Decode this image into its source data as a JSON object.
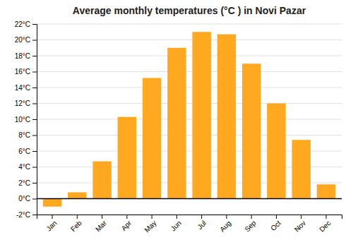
{
  "chart_data": {
    "type": "bar",
    "title": "Average monthly temperatures (°C ) in Novi Pazar",
    "categories": [
      "Jan",
      "Feb",
      "Mar",
      "Apr",
      "May",
      "Jun",
      "Jul",
      "Aug",
      "Sep",
      "Oct",
      "Nov",
      "Dec"
    ],
    "values": [
      -1.0,
      0.8,
      4.7,
      10.3,
      15.2,
      19.0,
      21.0,
      20.7,
      17.0,
      12.0,
      7.4,
      1.8
    ],
    "color": "#FFA820",
    "ylim": [
      -2,
      22
    ],
    "yticks": [
      {
        "value": -2,
        "label": "-2°C"
      },
      {
        "value": 0,
        "label": "0°C"
      },
      {
        "value": 2,
        "label": "2°C"
      },
      {
        "value": 4,
        "label": "4°C"
      },
      {
        "value": 6,
        "label": "6°C"
      },
      {
        "value": 8,
        "label": "8°C"
      },
      {
        "value": 10,
        "label": "10°C"
      },
      {
        "value": 12,
        "label": "12°C"
      },
      {
        "value": 14,
        "label": "14°C"
      },
      {
        "value": 16,
        "label": "16°C"
      },
      {
        "value": 18,
        "label": "18°C"
      },
      {
        "value": 20,
        "label": "20°C"
      },
      {
        "value": 22,
        "label": "22°C"
      }
    ],
    "grid": true
  }
}
